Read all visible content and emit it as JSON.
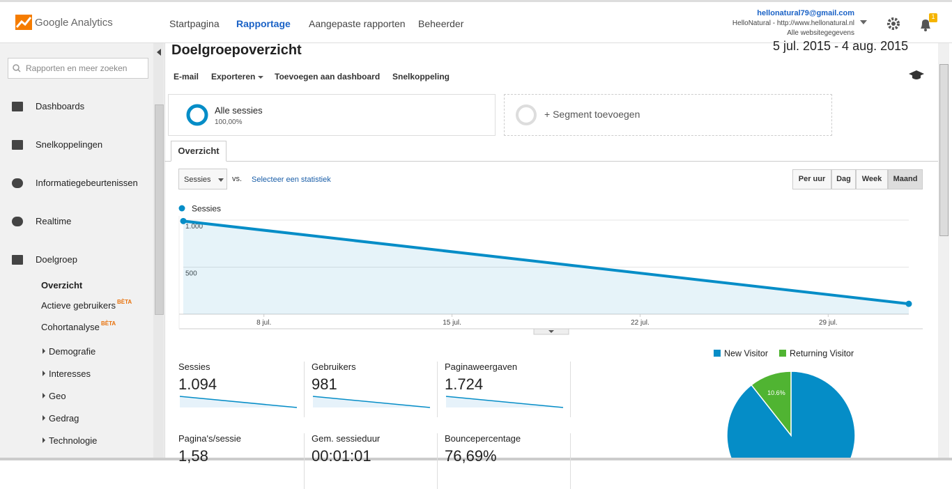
{
  "header": {
    "logo": "Google Analytics",
    "nav": [
      "Startpagina",
      "Rapportage",
      "Aangepaste rapporten",
      "Beheerder"
    ],
    "active_nav": 1,
    "account": {
      "email": "hellonatural79@gmail.com",
      "property": "HelloNatural - http://www.hellonatural.nl",
      "view": "Alle websitegegevens"
    },
    "notifications": "1"
  },
  "sidebar": {
    "search_placeholder": "Rapporten en meer zoeken",
    "items": [
      "Dashboards",
      "Snelkoppelingen",
      "Informatiegebeurtenissen",
      "Realtime",
      "Doelgroep"
    ],
    "subitems": [
      {
        "label": "Overzicht"
      },
      {
        "label": "Actieve gebruikers",
        "badge": "BÈTA"
      },
      {
        "label": "Cohortanalyse",
        "badge": "BÈTA"
      },
      {
        "label": "Demografie"
      },
      {
        "label": "Interesses"
      },
      {
        "label": "Geo"
      },
      {
        "label": "Gedrag"
      },
      {
        "label": "Technologie"
      }
    ]
  },
  "report": {
    "title": "Doelgroepoverzicht",
    "date_range": "5 jul. 2015 - 4 aug. 2015",
    "actions": [
      "E-mail",
      "Exporteren",
      "Toevoegen aan dashboard",
      "Snelkoppeling"
    ],
    "segment": {
      "name": "Alle sessies",
      "share": "100,00%"
    },
    "add_segment": "+ Segment toevoegen",
    "tab": "Overzicht",
    "metric_select": "Sessies",
    "vs": "vs.",
    "select_metric": "Selecteer een statistiek",
    "granularity": [
      "Per uur",
      "Dag",
      "Week",
      "Maand"
    ],
    "scorecards": [
      {
        "name": "Sessies",
        "value": "1.094"
      },
      {
        "name": "Gebruikers",
        "value": "981"
      },
      {
        "name": "Paginaweergaven",
        "value": "1.724"
      },
      {
        "name": "Pagina's/sessie",
        "value": "1,58"
      },
      {
        "name": "Gem. sessieduur",
        "value": "00:01:01"
      },
      {
        "name": "Bouncepercentage",
        "value": "76,69%"
      }
    ]
  },
  "chart_data": [
    {
      "type": "line",
      "x": [
        0,
        27
      ],
      "xlim": [
        0,
        27
      ],
      "xticks": [
        {
          "value": 3,
          "label": "8 jul."
        },
        {
          "value": 10,
          "label": "15 jul."
        },
        {
          "value": 17,
          "label": "22 jul."
        },
        {
          "value": 24,
          "label": "29 jul."
        }
      ],
      "ylim": [
        0,
        1000
      ],
      "yticks": [
        {
          "value": 500,
          "label": "500"
        },
        {
          "value": 1000,
          "label": "1.000"
        }
      ],
      "grid": true,
      "series": [
        {
          "name": "Sessies",
          "color": "#058dc7",
          "values": [
            990,
            110
          ]
        }
      ]
    },
    {
      "type": "pie",
      "categories": [
        "New Visitor",
        "Returning Visitor"
      ],
      "values": [
        89.4,
        10.6
      ],
      "value_labels": [
        null,
        "10.6%"
      ],
      "colors": [
        "#058dc7",
        "#50b432"
      ],
      "legend": "top"
    }
  ]
}
